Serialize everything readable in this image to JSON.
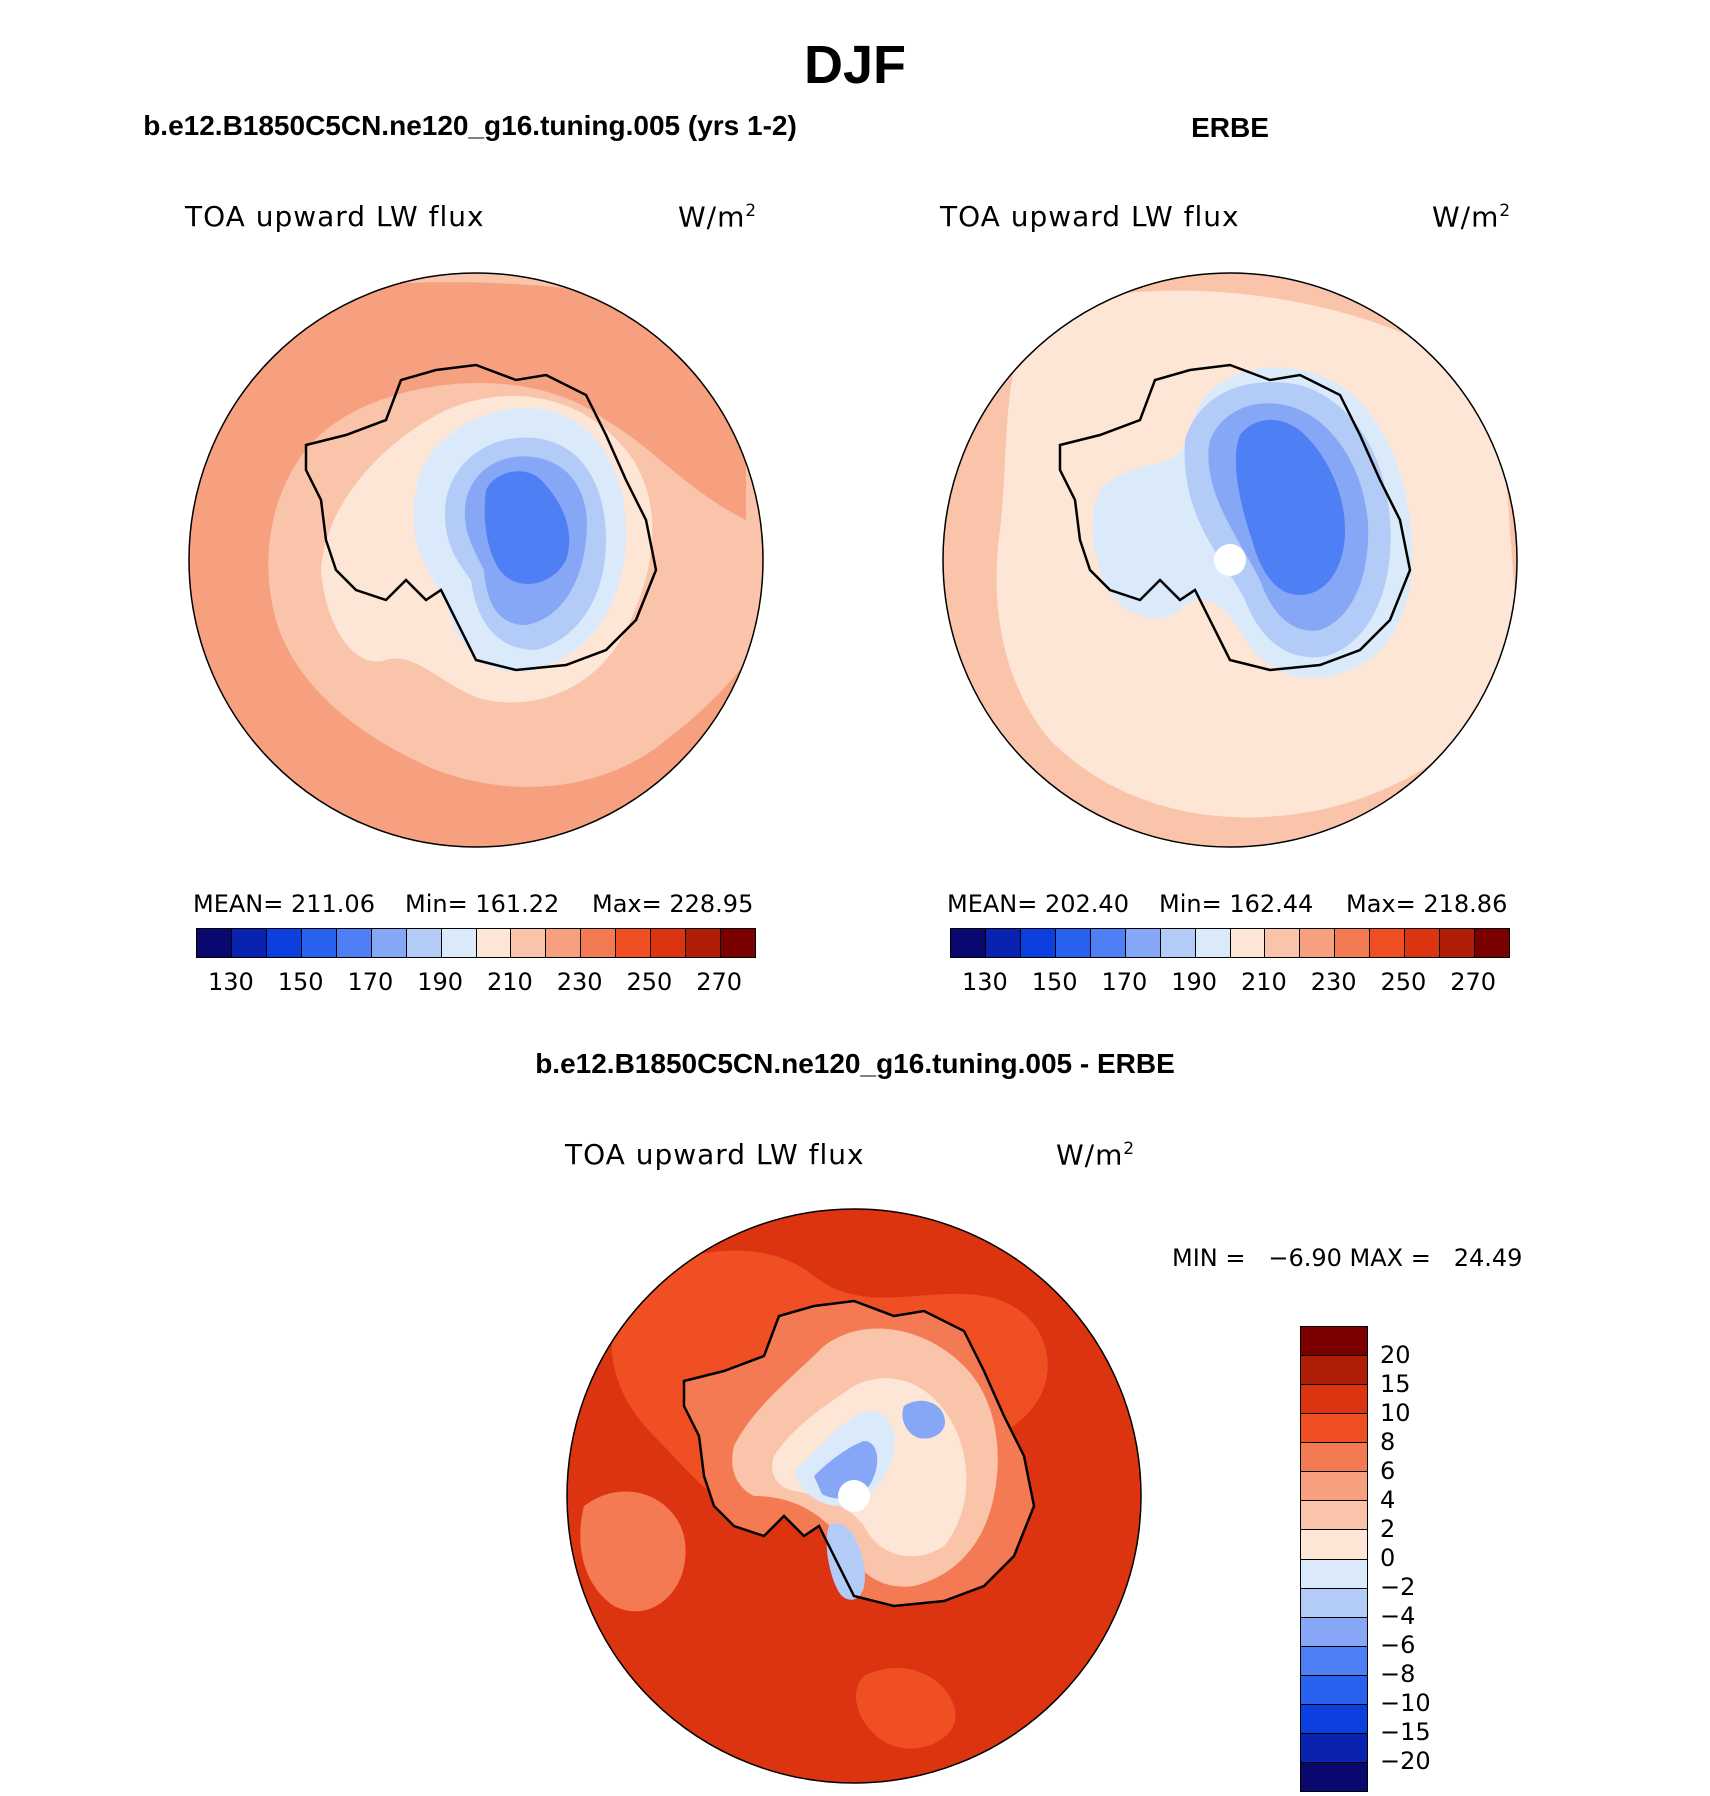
{
  "page_title": "DJF",
  "panels": [
    {
      "title": "b.e12.B1850C5CN.ne120_g16.tuning.005 (yrs 1-2)",
      "variable": "TOA upward LW flux",
      "units": "W/m",
      "units_exp": "2",
      "mean_label": "MEAN= 211.06",
      "min_label": "Min= 161.22",
      "max_label": "Max= 228.95",
      "mean": 211.06,
      "min": 161.22,
      "max": 228.95
    },
    {
      "title": "ERBE",
      "variable": "TOA upward LW flux",
      "units": "W/m",
      "units_exp": "2",
      "mean_label": "MEAN= 202.40",
      "min_label": "Min= 162.44",
      "max_label": "Max= 218.86",
      "mean": 202.4,
      "min": 162.44,
      "max": 218.86
    },
    {
      "title": "b.e12.B1850C5CN.ne120_g16.tuning.005 - ERBE",
      "variable": "TOA upward LW flux",
      "units": "W/m",
      "units_exp": "2",
      "minmax_label": "MIN =   −6.90 MAX =   24.49",
      "min": -6.9,
      "max": 24.49
    }
  ],
  "colorbar_abs": {
    "ticks": [
      "130",
      "150",
      "170",
      "190",
      "210",
      "230",
      "250",
      "270"
    ],
    "colors": [
      "#08086e",
      "#0a22b0",
      "#0b3fe0",
      "#2a62f0",
      "#4f7ff4",
      "#86a6f6",
      "#b3cbf7",
      "#dbeafa",
      "#fde6d6",
      "#f9c4aa",
      "#f6a07f",
      "#f47a53",
      "#f04e23",
      "#dc3410",
      "#b01e08",
      "#7a0000"
    ]
  },
  "colorbar_diff": {
    "ticks": [
      "20",
      "15",
      "10",
      "8",
      "6",
      "4",
      "2",
      "0",
      "−2",
      "−4",
      "−6",
      "−8",
      "−10",
      "−15",
      "−20"
    ],
    "colors": [
      "#7a0000",
      "#b01e08",
      "#dc3410",
      "#f04e23",
      "#f47a53",
      "#f6a07f",
      "#f9c4aa",
      "#fde6d6",
      "#dbeafa",
      "#b3cbf7",
      "#86a6f6",
      "#4f7ff4",
      "#2a62f0",
      "#0b3fe0",
      "#0a22b0",
      "#08086e"
    ]
  }
}
